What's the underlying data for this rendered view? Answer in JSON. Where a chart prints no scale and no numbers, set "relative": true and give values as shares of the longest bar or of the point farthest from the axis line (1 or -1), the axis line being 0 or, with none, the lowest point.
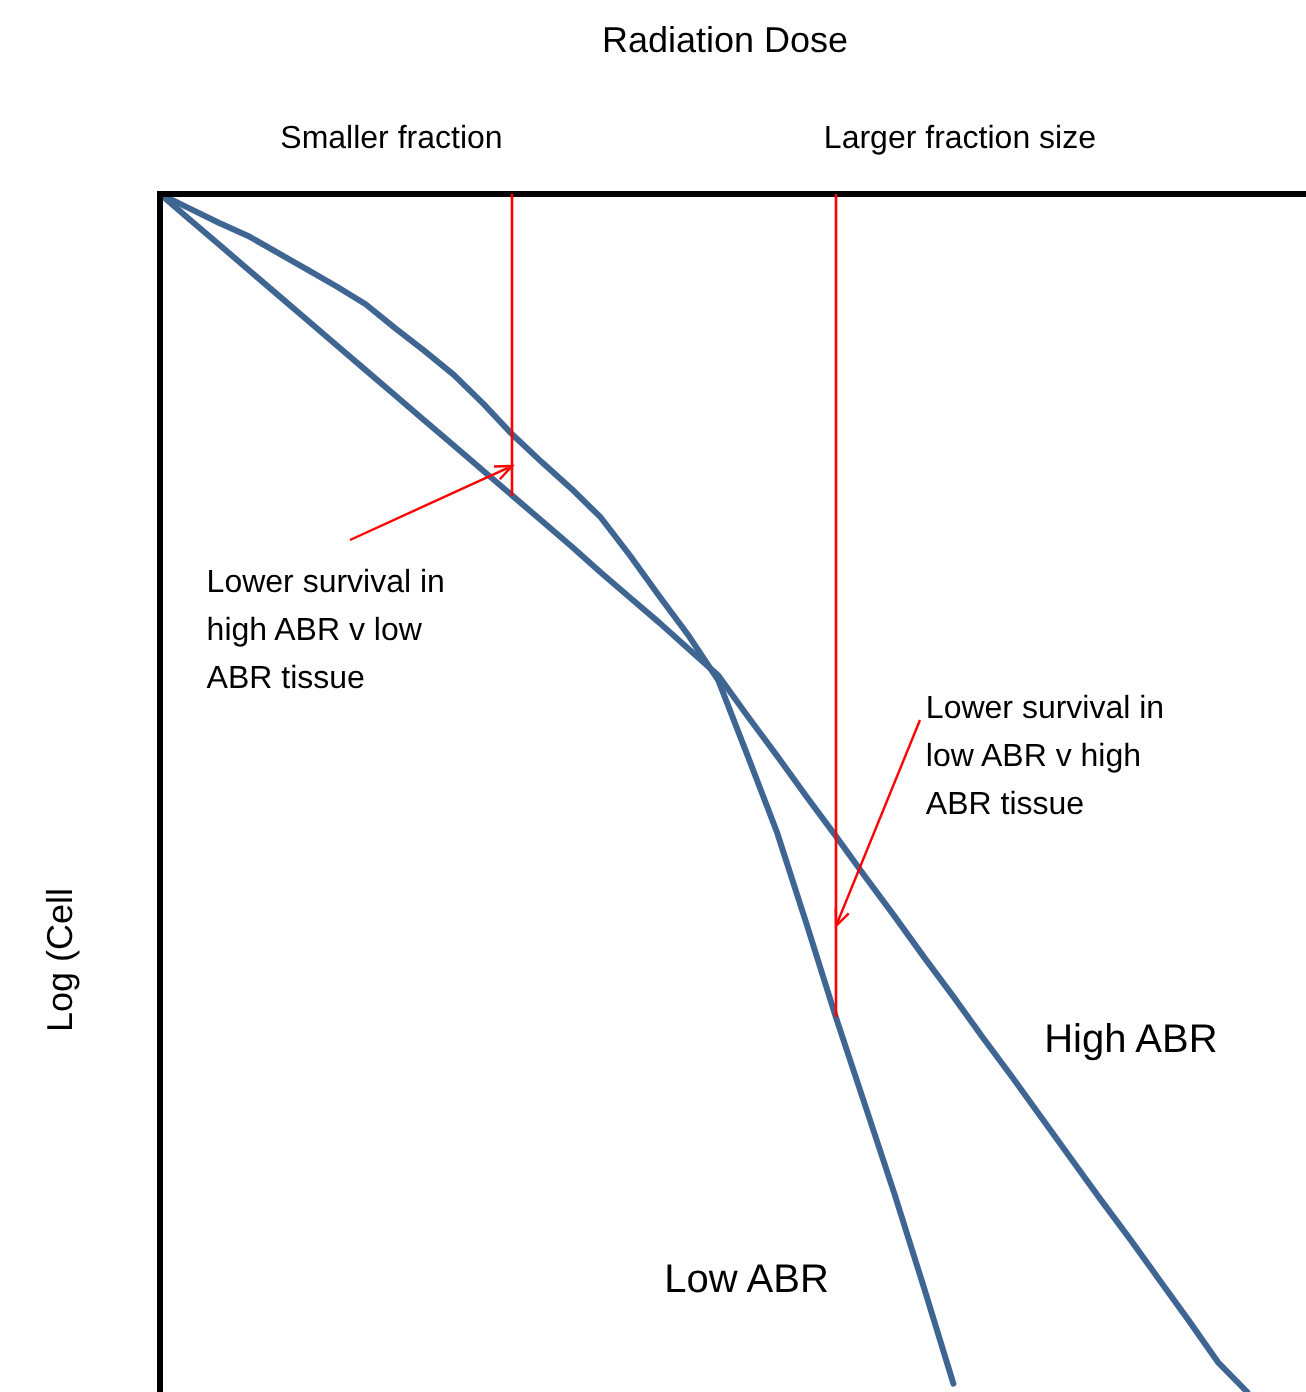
{
  "chart_data": {
    "type": "line",
    "xlabel": "Radiation Dose",
    "ylabel": "Log (Cell",
    "relative": true,
    "tick_labels": false,
    "categories": [
      null,
      null,
      null,
      null,
      null,
      null,
      null,
      null,
      null,
      null,
      null,
      null,
      null,
      null,
      null,
      null,
      null,
      null,
      null,
      null,
      null,
      null,
      null,
      null,
      null,
      null,
      null,
      null,
      null,
      null,
      null,
      null,
      null,
      null,
      null,
      null,
      null,
      null,
      null,
      null
    ],
    "series": [
      {
        "name": "High ABR",
        "color": "#3f6592",
        "values": [
          0,
          -0.021,
          -0.042,
          -0.063,
          -0.084,
          -0.105,
          -0.126,
          -0.147,
          -0.168,
          -0.189,
          -0.21,
          -0.231,
          -0.252,
          -0.273,
          -0.294,
          -0.316,
          -0.337,
          -0.358,
          -0.38,
          -0.402,
          -0.436,
          -0.469,
          -0.503,
          -0.536,
          -0.57,
          -0.603,
          -0.637,
          -0.67,
          -0.704,
          -0.737,
          -0.771,
          -0.805,
          -0.839,
          -0.872,
          -0.906,
          -0.94,
          -0.975,
          -1,
          null,
          null
        ]
      },
      {
        "name": "Low ABR",
        "color": "#3f6592",
        "values": [
          0,
          -0.012,
          -0.024,
          -0.035,
          -0.049,
          -0.063,
          -0.077,
          -0.092,
          -0.112,
          -0.131,
          -0.151,
          -0.175,
          -0.201,
          -0.224,
          -0.246,
          -0.27,
          -0.302,
          -0.336,
          -0.369,
          -0.406,
          -0.469,
          -0.533,
          -0.609,
          -0.687,
          -0.761,
          -0.835,
          -0.913,
          -0.993,
          null,
          null,
          null,
          null,
          null,
          null,
          null,
          null,
          null,
          null,
          null,
          null
        ]
      }
    ],
    "annotations": [
      "Smaller fraction",
      "Larger fraction size",
      "Lower survival in\nhigh ABR v low\nABR tissue",
      "Lower survival in\nlow ABR v high\nABR tissue"
    ]
  }
}
